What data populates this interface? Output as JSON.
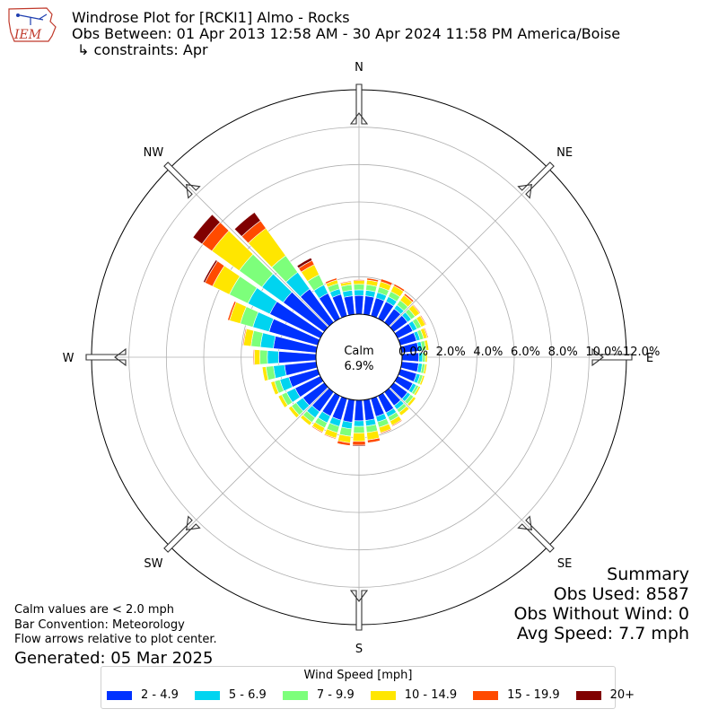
{
  "header": {
    "logo_text": "IEM",
    "title": "Windrose Plot for [RCKI1] Almo - Rocks",
    "subtitle": "Obs Between: 01 Apr 2013 12:58 AM - 30 Apr 2024 11:58 PM America/Boise",
    "constraints": "↳ constraints: Apr"
  },
  "chart_data": {
    "type": "windrose",
    "units": "%",
    "radial_ticks": [
      "0.0%",
      "2.0%",
      "4.0%",
      "6.0%",
      "8.0%",
      "10.0%",
      "12.0%"
    ],
    "radial_max": 12,
    "calm": {
      "label": "Calm",
      "value": "6.9%"
    },
    "compass_labels": [
      {
        "label": "N",
        "deg": 0
      },
      {
        "label": "NE",
        "deg": 45
      },
      {
        "label": "E",
        "deg": 90
      },
      {
        "label": "SE",
        "deg": 135
      },
      {
        "label": "S",
        "deg": 180
      },
      {
        "label": "SW",
        "deg": 225
      },
      {
        "label": "W",
        "deg": 270
      },
      {
        "label": "NW",
        "deg": 315
      }
    ],
    "directions_deg": [
      0,
      10,
      20,
      30,
      40,
      50,
      60,
      70,
      80,
      90,
      100,
      110,
      120,
      130,
      140,
      150,
      160,
      170,
      180,
      190,
      200,
      210,
      220,
      230,
      240,
      250,
      260,
      270,
      280,
      290,
      300,
      310,
      320,
      330,
      340,
      350
    ],
    "series": [
      {
        "name": "2 - 4.9",
        "color": "#0032ff",
        "values": [
          1.0,
          1.0,
          1.0,
          1.0,
          0.9,
          0.9,
          0.9,
          0.9,
          0.9,
          0.9,
          0.9,
          0.9,
          0.9,
          0.9,
          0.9,
          1.0,
          1.0,
          1.1,
          1.1,
          1.2,
          1.2,
          1.2,
          1.3,
          1.4,
          1.5,
          1.6,
          1.7,
          2.0,
          2.3,
          2.7,
          3.0,
          2.7,
          2.2,
          1.5,
          1.2,
          1.0
        ]
      },
      {
        "name": "5 - 6.9",
        "color": "#00d4f0",
        "values": [
          0.3,
          0.3,
          0.3,
          0.3,
          0.25,
          0.25,
          0.25,
          0.2,
          0.2,
          0.2,
          0.2,
          0.2,
          0.2,
          0.2,
          0.25,
          0.25,
          0.3,
          0.3,
          0.3,
          0.35,
          0.35,
          0.4,
          0.4,
          0.45,
          0.5,
          0.5,
          0.6,
          0.6,
          0.7,
          0.9,
          1.3,
          1.4,
          1.1,
          0.5,
          0.3,
          0.3
        ]
      },
      {
        "name": "7 - 9.9",
        "color": "#7dff7b",
        "values": [
          0.3,
          0.3,
          0.3,
          0.3,
          0.3,
          0.25,
          0.25,
          0.2,
          0.2,
          0.15,
          0.15,
          0.15,
          0.15,
          0.2,
          0.2,
          0.25,
          0.3,
          0.35,
          0.35,
          0.4,
          0.35,
          0.3,
          0.3,
          0.3,
          0.3,
          0.3,
          0.4,
          0.4,
          0.5,
          0.7,
          1.1,
          1.5,
          1.1,
          0.6,
          0.3,
          0.3
        ]
      },
      {
        "name": "10 - 14.9",
        "color": "#ffe600",
        "values": [
          0.2,
          0.25,
          0.3,
          0.35,
          0.35,
          0.3,
          0.25,
          0.2,
          0.15,
          0.1,
          0.1,
          0.1,
          0.1,
          0.15,
          0.2,
          0.25,
          0.3,
          0.4,
          0.45,
          0.35,
          0.3,
          0.25,
          0.2,
          0.2,
          0.2,
          0.2,
          0.2,
          0.3,
          0.4,
          0.6,
          1.0,
          1.8,
          1.8,
          0.6,
          0.2,
          0.15
        ]
      },
      {
        "name": "15 - 19.9",
        "color": "#ff4a00",
        "values": [
          0.05,
          0.1,
          0.15,
          0.1,
          0.1,
          0.05,
          0.05,
          0.05,
          0.0,
          0.0,
          0.0,
          0.0,
          0.0,
          0.0,
          0.0,
          0.05,
          0.05,
          0.15,
          0.2,
          0.15,
          0.05,
          0.05,
          0.0,
          0.0,
          0.0,
          0.0,
          0.0,
          0.05,
          0.05,
          0.1,
          0.45,
          0.65,
          0.5,
          0.25,
          0.1,
          0.05
        ]
      },
      {
        "name": "20+",
        "color": "#800000",
        "values": [
          0.0,
          0.0,
          0.0,
          0.0,
          0.0,
          0.0,
          0.0,
          0.0,
          0.0,
          0.0,
          0.0,
          0.0,
          0.0,
          0.0,
          0.0,
          0.0,
          0.0,
          0.0,
          0.05,
          0.0,
          0.0,
          0.0,
          0.0,
          0.0,
          0.0,
          0.0,
          0.0,
          0.0,
          0.0,
          0.0,
          0.1,
          0.6,
          0.55,
          0.15,
          0.0,
          0.0
        ]
      }
    ],
    "legend": {
      "title": "Wind Speed [mph]",
      "placement": "bottom-center"
    },
    "grid": true
  },
  "footer": {
    "calm_note": "Calm values are < 2.0 mph",
    "bar_convention": "Bar Convention: Meteorology",
    "flow_note": "Flow arrows relative to plot center.",
    "generated": "Generated: 05 Mar 2025"
  },
  "summary": {
    "title": "Summary",
    "obs_used": "Obs Used: 8587",
    "obs_without_wind": "Obs Without Wind: 0",
    "avg_speed": "Avg Speed: 7.7 mph"
  }
}
